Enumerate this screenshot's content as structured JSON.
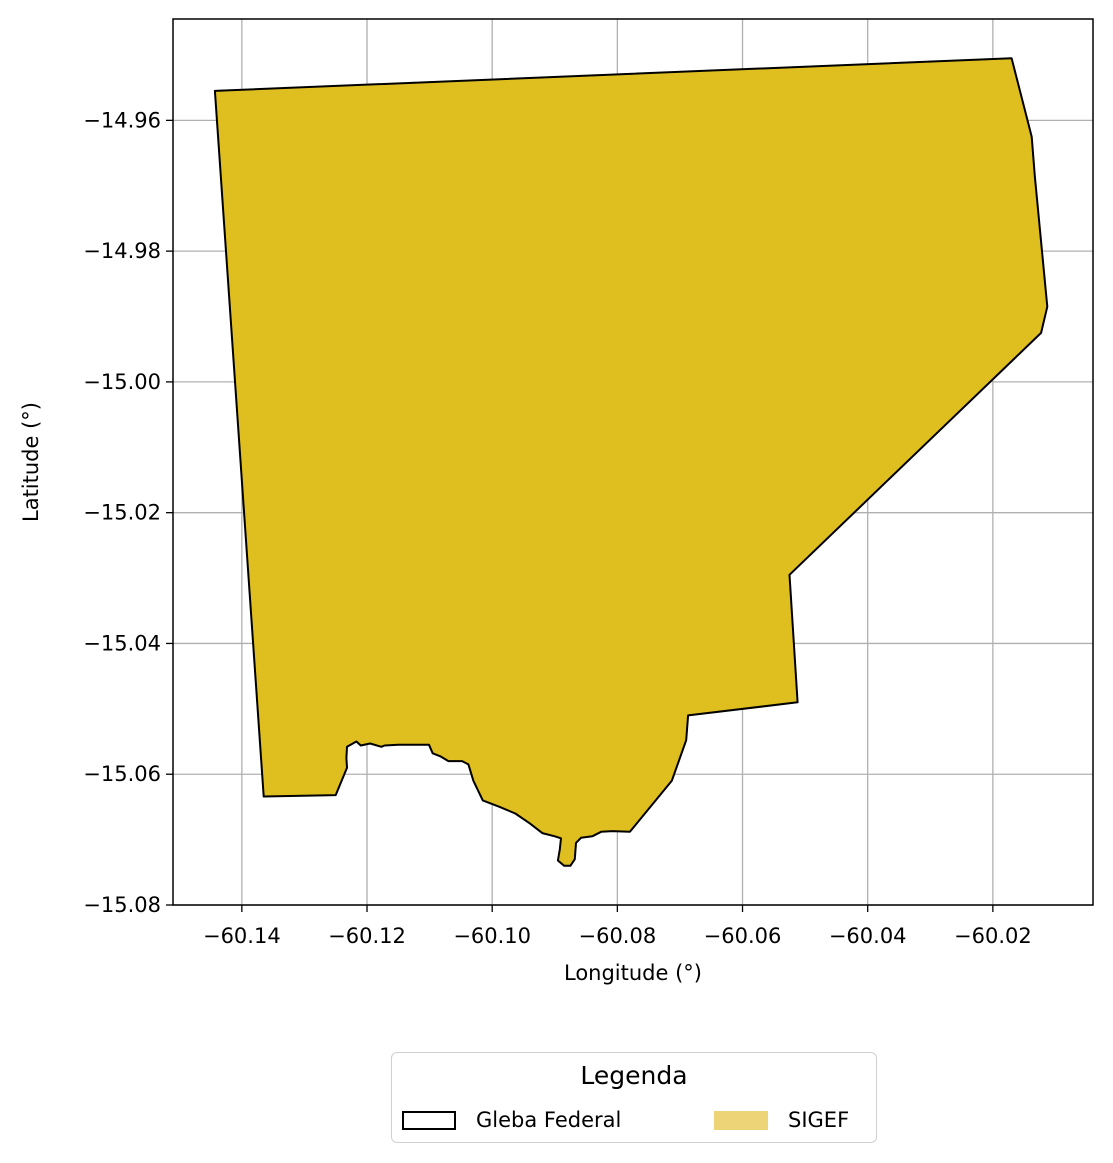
{
  "chart_data": {
    "type": "map",
    "xlabel": "Longitude (°)",
    "ylabel": "Latitude (°)",
    "xlim": [
      -60.151,
      -60.004
    ],
    "ylim": [
      -15.08,
      -14.9445
    ],
    "xticks": [
      -60.14,
      -60.12,
      -60.1,
      -60.08,
      -60.06,
      -60.04,
      -60.02
    ],
    "yticks": [
      -14.96,
      -14.98,
      -15.0,
      -15.02,
      -15.04,
      -15.06,
      -15.08
    ],
    "xtick_labels": [
      "−60.14",
      "−60.12",
      "−60.10",
      "−60.08",
      "−60.06",
      "−60.04",
      "−60.02"
    ],
    "ytick_labels": [
      "−14.96",
      "−14.98",
      "−15.00",
      "−15.02",
      "−15.04",
      "−15.06",
      "−15.08"
    ],
    "grid": true,
    "legend": {
      "title": "Legenda",
      "placement": "below",
      "entries": [
        {
          "label": "Gleba Federal",
          "style": "outline",
          "color": "#000000"
        },
        {
          "label": "SIGEF",
          "style": "fill",
          "color": "#ecd477"
        }
      ]
    },
    "layers": [
      {
        "name": "SIGEF",
        "fill": "#dfbe20",
        "stroke": "#000000",
        "polygon": [
          [
            -60.1443,
            -14.9555
          ],
          [
            -60.017,
            -14.9505
          ],
          [
            -60.0138,
            -14.9625
          ],
          [
            -60.0133,
            -14.9685
          ],
          [
            -60.0113,
            -14.9885
          ],
          [
            -60.0123,
            -14.9925
          ],
          [
            -60.0525,
            -15.0295
          ],
          [
            -60.0512,
            -15.049
          ],
          [
            -60.0687,
            -15.051
          ],
          [
            -60.069,
            -15.0548
          ],
          [
            -60.0713,
            -15.061
          ],
          [
            -60.078,
            -15.0688
          ],
          [
            -60.0808,
            -15.0687
          ],
          [
            -60.0826,
            -15.0688
          ],
          [
            -60.084,
            -15.0695
          ],
          [
            -60.0858,
            -15.0697
          ],
          [
            -60.0866,
            -15.0705
          ],
          [
            -60.0868,
            -15.073
          ],
          [
            -60.0875,
            -15.074
          ],
          [
            -60.0885,
            -15.074
          ],
          [
            -60.0895,
            -15.0732
          ],
          [
            -60.0892,
            -15.0715
          ],
          [
            -60.089,
            -15.0698
          ],
          [
            -60.09,
            -15.0695
          ],
          [
            -60.092,
            -15.069
          ],
          [
            -60.094,
            -15.0675
          ],
          [
            -60.0963,
            -15.066
          ],
          [
            -60.0988,
            -15.065
          ],
          [
            -60.1015,
            -15.064
          ],
          [
            -60.103,
            -15.061
          ],
          [
            -60.1038,
            -15.0585
          ],
          [
            -60.1048,
            -15.058
          ],
          [
            -60.107,
            -15.058
          ],
          [
            -60.1082,
            -15.0573
          ],
          [
            -60.1095,
            -15.0568
          ],
          [
            -60.1101,
            -15.0555
          ],
          [
            -60.115,
            -15.0555
          ],
          [
            -60.1172,
            -15.0556
          ],
          [
            -60.1177,
            -15.0558
          ],
          [
            -60.1195,
            -15.0553
          ],
          [
            -60.121,
            -15.0556
          ],
          [
            -60.1217,
            -15.055
          ],
          [
            -60.1232,
            -15.0558
          ],
          [
            -60.1233,
            -15.0575
          ],
          [
            -60.1232,
            -15.059
          ],
          [
            -60.125,
            -15.0632
          ],
          [
            -60.1365,
            -15.0634
          ]
        ]
      }
    ]
  }
}
